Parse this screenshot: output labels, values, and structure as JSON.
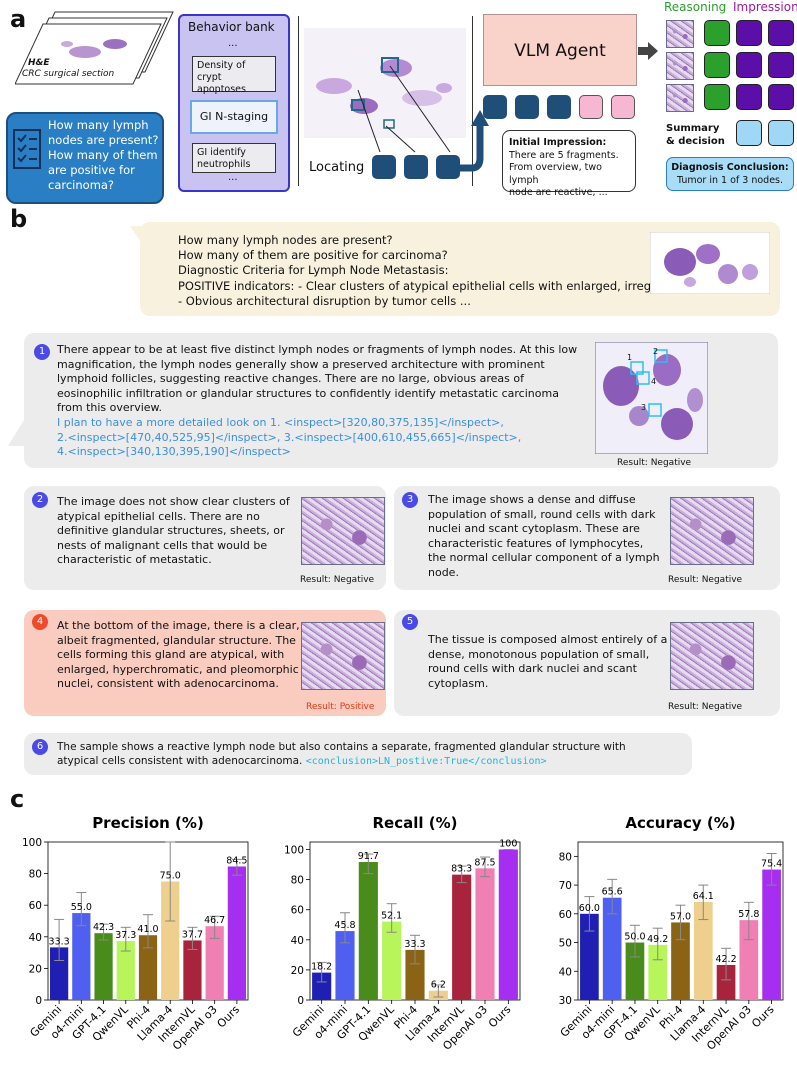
{
  "panel_a": {
    "letter": "a",
    "slide_label_1": "H&E",
    "slide_label_2": "CRC surgical section",
    "question_1": "How many lymph",
    "question_2": "nodes are present?",
    "question_3": "How many of them",
    "question_4": "are positive for",
    "question_5": "carcinoma?",
    "behavior_bank_title": "Behavior bank",
    "ellipsis": "...",
    "bank_item_1a": "Density of",
    "bank_item_1b": "crypt apoptoses",
    "bank_item_2": "GI N-staging",
    "bank_item_3a": "GI identify",
    "bank_item_3b": "neutrophils",
    "locating": "Locating",
    "vlm_agent": "VLM Agent",
    "initial_title": "Initial Impression:",
    "initial_1": "There are 5 fragments.",
    "initial_2": "From overview, two lymph",
    "initial_3": "node are reactive, ...",
    "reasoning": "Reasoning",
    "impression": "Impression",
    "summary_1": "Summary",
    "summary_2": "& decision",
    "diagnosis_title": "Diagnosis Conclusion:",
    "diagnosis_text": "Tumor in 1 of 3 nodes.",
    "colors": {
      "navy": "#1f4e79",
      "green": "#2ca02c",
      "purple": "#5b0fa8",
      "pink": "#f7b6d2",
      "lightblue": "#9fd7f6"
    }
  },
  "panel_b": {
    "letter": "b",
    "prompt_1": "How many lymph nodes are present?",
    "prompt_2": "How many of them are positive for carcinoma?",
    "prompt_3": "Diagnostic Criteria for Lymph Node Metastasis:",
    "prompt_4": "POSITIVE indicators:  - Clear clusters of atypical epithelial cells with enlarged, irregul",
    "prompt_5": "- Obvious architectural disruption by tumor cells ...",
    "step1_num": "1",
    "step1_text": "There appear to be at least five distinct lymph nodes or fragments of lymph nodes. At this low magnification, the lymph nodes generally show a preserved architecture with prominent lymphoid follicles, suggesting reactive changes. There are no large, obvious areas of eosinophilic infiltration or glandular structures to confidently identify metastatic carcinoma from this overview.",
    "step1_plan_1": "I plan to have a more detailed look on 1. <inspect>[320,80,375,135]</inspect>,",
    "step1_plan_2": "2.<inspect>[470,40,525,95]</inspect>, 3.<inspect>[400,610,455,665]</inspect>,",
    "step1_plan_3": "4.<inspect>[340,130,395,190]</inspect>",
    "step1_result": "Result: Negative",
    "step1_markers": [
      "1",
      "2",
      "3",
      "4"
    ],
    "step2_num": "2",
    "step2_text": "The image does not show clear clusters of atypical epithelial cells. There are no definitive glandular structures, sheets, or nests of malignant cells that would be characteristic of metastatic.",
    "step2_result": "Result: Negative",
    "step3_num": "3",
    "step3_text": "The image shows a dense and diffuse population of small, round cells with dark nuclei and scant cytoplasm. These are characteristic features of lymphocytes, the normal cellular component of a lymph node.",
    "step3_result": "Result: Negative",
    "step4_num": "4",
    "step4_text": "At the bottom of the image, there is a clear, albeit fragmented, glandular structure. The cells forming this gland are atypical, with enlarged, hyperchromatic, and pleomorphic nuclei, consistent with adenocarcinoma.",
    "step4_result": "Result: Positive",
    "step5_num": "5",
    "step5_text": "The tissue is composed almost entirely of a dense, monotonous population of small, round cells with dark nuclei and scant cytoplasm.",
    "step5_result": "Result: Negative",
    "step6_num": "6",
    "step6_text_1": "The sample shows a reactive lymph node but also contains a separate, fragmented glandular structure with",
    "step6_text_2": "atypical cells consistent with adenocarcinoma.",
    "step6_conclusion": "<conclusion>LN_postive:True</conclusion>"
  },
  "panel_c": {
    "letter": "c"
  },
  "chart_data": [
    {
      "type": "bar",
      "title": "Precision (%)",
      "categories": [
        "Gemini",
        "o4-mini",
        "GPT-4.1",
        "QwenVL",
        "Phi-4",
        "Llama-4",
        "InternVL",
        "OpenAI o3",
        "Ours"
      ],
      "values": [
        33.3,
        55.0,
        42.3,
        37.3,
        41.0,
        75.0,
        37.7,
        46.7,
        84.5
      ],
      "errors": [
        [
          25,
          51
        ],
        [
          47,
          68
        ],
        [
          38,
          48
        ],
        [
          31,
          46
        ],
        [
          33,
          54
        ],
        [
          50,
          100
        ],
        [
          32,
          46
        ],
        [
          39,
          53
        ],
        [
          79,
          89
        ]
      ],
      "value_labels": [
        "33.3",
        "55.0",
        "42.3",
        "37.3",
        "41.0",
        "75.0",
        "37.7",
        "46.7",
        "84.5"
      ],
      "ylim": [
        0,
        100
      ],
      "yticks": [
        0,
        20,
        40,
        60,
        80,
        100
      ]
    },
    {
      "type": "bar",
      "title": "Recall (%)",
      "categories": [
        "Gemini",
        "o4-mini",
        "GPT-4.1",
        "QwenVL",
        "Phi-4",
        "Llama-4",
        "InternVL",
        "OpenAI o3",
        "Ours"
      ],
      "values": [
        18.2,
        45.8,
        91.7,
        52.1,
        33.3,
        6.2,
        83.3,
        87.5,
        100
      ],
      "errors": [
        [
          12,
          25
        ],
        [
          38,
          58
        ],
        [
          84,
          97
        ],
        [
          45,
          64
        ],
        [
          24,
          43
        ],
        [
          2,
          10
        ],
        [
          78,
          89
        ],
        [
          82,
          95
        ],
        [
          100,
          100
        ]
      ],
      "value_labels": [
        "18.2",
        "45.8",
        "91.7",
        "52.1",
        "33.3",
        "6.2",
        "83.3",
        "87.5",
        "100"
      ],
      "ylim": [
        0,
        105
      ],
      "yticks": [
        0,
        20,
        40,
        60,
        80,
        100
      ]
    },
    {
      "type": "bar",
      "title": "Accuracy (%)",
      "categories": [
        "Gemini",
        "o4-mini",
        "GPT-4.1",
        "QwenVL",
        "Phi-4",
        "Llama-4",
        "InternVL",
        "OpenAI o3",
        "Ours"
      ],
      "values": [
        60.0,
        65.6,
        50.0,
        49.2,
        57.0,
        64.1,
        42.2,
        57.8,
        75.4
      ],
      "errors": [
        [
          54,
          66
        ],
        [
          60,
          72
        ],
        [
          45,
          56
        ],
        [
          44,
          55
        ],
        [
          51,
          63
        ],
        [
          58,
          70
        ],
        [
          37,
          48
        ],
        [
          51,
          64
        ],
        [
          70,
          81
        ]
      ],
      "value_labels": [
        "60.0",
        "65.6",
        "50.0",
        "49.2",
        "57.0",
        "64.1",
        "42.2",
        "57.8",
        "75.4"
      ],
      "ylim": [
        30,
        85
      ],
      "yticks": [
        30,
        40,
        50,
        60,
        70,
        80
      ]
    }
  ],
  "bar_colors": [
    "#1f1fb4",
    "#4f5ff0",
    "#4a8c1c",
    "#b7f55a",
    "#8a6414",
    "#efcf8e",
    "#a8243d",
    "#f07fb4",
    "#a52ef0"
  ]
}
